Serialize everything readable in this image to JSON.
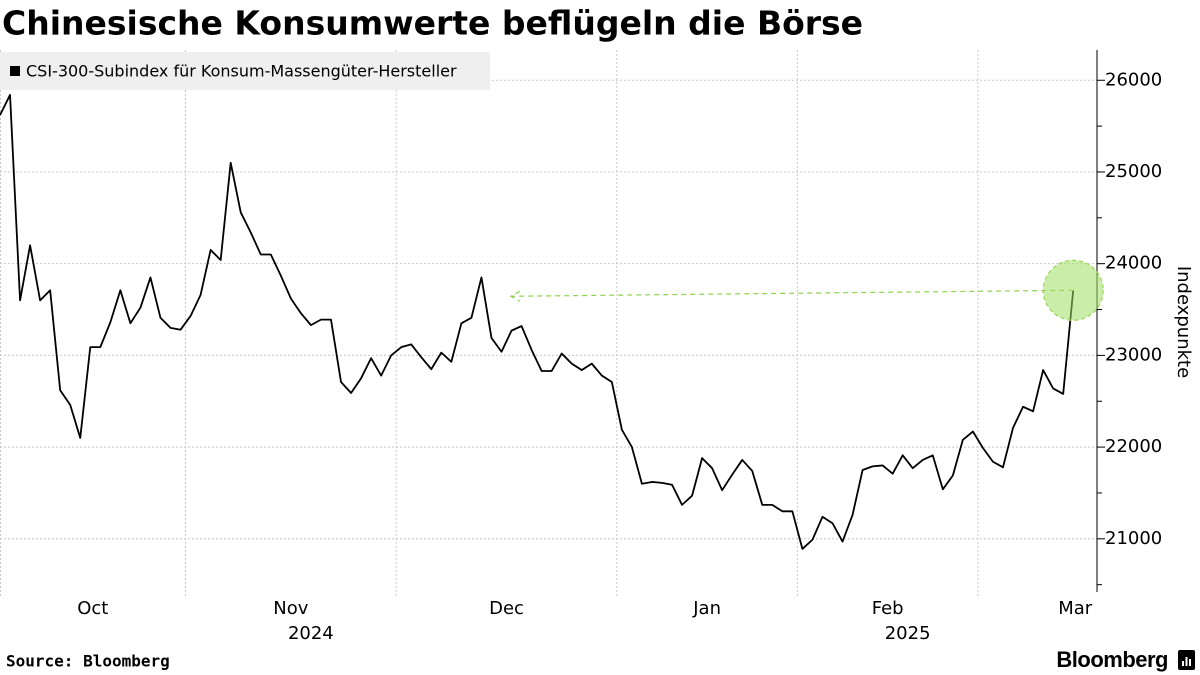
{
  "chart_data": {
    "type": "line",
    "title": "Chinesische Konsumwerte beflügeln die Börse",
    "source": "Source: Bloomberg",
    "brand": "Bloomberg",
    "y_axis_label": "Indexpunkte",
    "x": [
      "2024-09-30",
      "2024-10-08",
      "2024-10-09",
      "2024-10-10",
      "2024-10-11",
      "2024-10-14",
      "2024-10-15",
      "2024-10-16",
      "2024-10-17",
      "2024-10-18",
      "2024-10-21",
      "2024-10-22",
      "2024-10-23",
      "2024-10-24",
      "2024-10-25",
      "2024-10-28",
      "2024-10-29",
      "2024-10-30",
      "2024-10-31",
      "2024-11-01",
      "2024-11-04",
      "2024-11-05",
      "2024-11-06",
      "2024-11-07",
      "2024-11-08",
      "2024-11-11",
      "2024-11-12",
      "2024-11-13",
      "2024-11-14",
      "2024-11-15",
      "2024-11-18",
      "2024-11-19",
      "2024-11-20",
      "2024-11-21",
      "2024-11-22",
      "2024-11-25",
      "2024-11-26",
      "2024-11-27",
      "2024-11-28",
      "2024-11-29",
      "2024-12-02",
      "2024-12-03",
      "2024-12-04",
      "2024-12-05",
      "2024-12-06",
      "2024-12-09",
      "2024-12-10",
      "2024-12-11",
      "2024-12-12",
      "2024-12-13",
      "2024-12-16",
      "2024-12-17",
      "2024-12-18",
      "2024-12-19",
      "2024-12-20",
      "2024-12-23",
      "2024-12-24",
      "2024-12-25",
      "2024-12-26",
      "2024-12-27",
      "2024-12-30",
      "2024-12-31",
      "2025-01-02",
      "2025-01-03",
      "2025-01-06",
      "2025-01-07",
      "2025-01-08",
      "2025-01-09",
      "2025-01-10",
      "2025-01-13",
      "2025-01-14",
      "2025-01-15",
      "2025-01-16",
      "2025-01-17",
      "2025-01-20",
      "2025-01-21",
      "2025-01-22",
      "2025-01-23",
      "2025-01-24",
      "2025-01-27",
      "2025-02-05",
      "2025-02-06",
      "2025-02-07",
      "2025-02-10",
      "2025-02-11",
      "2025-02-12",
      "2025-02-13",
      "2025-02-14",
      "2025-02-17",
      "2025-02-18",
      "2025-02-19",
      "2025-02-20",
      "2025-02-21",
      "2025-02-24",
      "2025-02-25",
      "2025-02-26",
      "2025-02-27",
      "2025-02-28",
      "2025-03-03",
      "2025-03-04",
      "2025-03-05",
      "2025-03-06",
      "2025-03-07",
      "2025-03-10",
      "2025-03-11",
      "2025-03-12",
      "2025-03-13",
      "2025-03-14"
    ],
    "series": [
      {
        "name": "CSI-300-Subindex für Konsum-Massengüter-Hersteller",
        "color": "#000000",
        "values": [
          25620,
          25840,
          23600,
          24200,
          23600,
          23710,
          22620,
          22460,
          22100,
          23090,
          23090,
          23360,
          23710,
          23350,
          23520,
          23850,
          23410,
          23300,
          23280,
          23430,
          23660,
          24150,
          24040,
          25100,
          24560,
          24340,
          24100,
          24100,
          23870,
          23620,
          23460,
          23330,
          23390,
          23390,
          22710,
          22590,
          22750,
          22970,
          22780,
          23000,
          23090,
          23120,
          22980,
          22850,
          23030,
          22930,
          23350,
          23410,
          23850,
          23190,
          23040,
          23270,
          23320,
          23060,
          22830,
          22830,
          23020,
          22910,
          22840,
          22910,
          22780,
          22710,
          22190,
          22000,
          21600,
          21620,
          21610,
          21590,
          21370,
          21470,
          21880,
          21770,
          21530,
          21700,
          21860,
          21740,
          21370,
          21370,
          21300,
          21300,
          20890,
          20990,
          21240,
          21170,
          20970,
          21260,
          21750,
          21790,
          21800,
          21710,
          21910,
          21770,
          21860,
          21910,
          21540,
          21690,
          22080,
          22170,
          21990,
          21840,
          21780,
          22210,
          22440,
          22390,
          22840,
          22640,
          22580,
          23710
        ]
      }
    ],
    "ylim": [
      20420,
      26330
    ],
    "yticks": [
      21000,
      22000,
      23000,
      24000,
      25000,
      26000
    ],
    "minor_yticks": [
      20500,
      21500,
      22500,
      23500,
      24500,
      25500
    ],
    "xticks": [
      {
        "value": "2024-10-08",
        "label": "Oct"
      },
      {
        "value": "2024-11-01",
        "label": "Nov"
      },
      {
        "value": "2024-12-02",
        "label": "Dec"
      },
      {
        "value": "2025-01-02",
        "label": "Jan"
      },
      {
        "value": "2025-02-05",
        "label": "Feb"
      },
      {
        "value": "2025-03-03",
        "label": "Mar"
      }
    ],
    "year_ticks": [
      {
        "value": "2024-11-01",
        "label": "2024"
      },
      {
        "value": "2025-02-05",
        "label": "2025"
      }
    ],
    "grid": true,
    "legend": "top-left"
  }
}
